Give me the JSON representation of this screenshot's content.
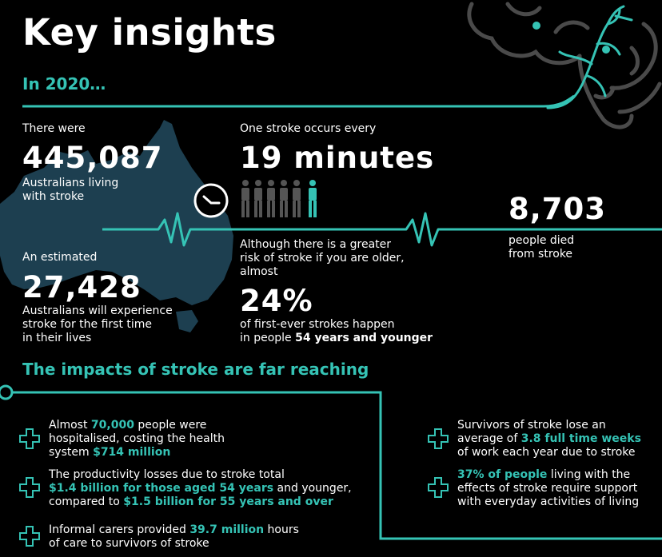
{
  "title": "Key insights",
  "subtitle": "In 2020…",
  "colors": {
    "accent": "#35c3b5",
    "background": "#000000",
    "map": "#1d3f50"
  },
  "stats": {
    "living": {
      "pre": "There were",
      "value": "445,087",
      "line1": "Australians living",
      "line2": "with stroke"
    },
    "frequency": {
      "pre": "One stroke occurs every",
      "value": "19 minutes"
    },
    "deaths": {
      "value": "8,703",
      "line1": "people died",
      "line2": "from stroke"
    },
    "first_time": {
      "pre": "An estimated",
      "value": "27,428",
      "line1": "Australians will experience",
      "line2": "stroke for the first time",
      "line3": "in their lives"
    },
    "young": {
      "line1": "Although there is a greater",
      "line2": "risk of stroke if you are older,",
      "line3": "almost",
      "value": "24%",
      "line4": "of first-ever strokes happen",
      "line5_pre": "in people ",
      "line5_bold": "54 years and younger"
    }
  },
  "impacts_title": "The impacts of stroke are far reaching",
  "impacts": {
    "hospital": {
      "t1": "Almost ",
      "h1": "70,000",
      "t2": " people were",
      "t3": "hospitalised, costing the health",
      "t4": "system ",
      "h2": "$714 million"
    },
    "productivity": {
      "t1": "The productivity losses due to stroke total",
      "h1": "$1.4 billion for those aged 54 years",
      "t2": " and younger,",
      "t3": "compared to ",
      "h2": "$1.5 billion for 55 years and over"
    },
    "carers": {
      "t1": "Informal carers provided ",
      "h1": "39.7 million",
      "t2": " hours",
      "t3": "of care to survivors of stroke"
    },
    "work": {
      "t1": "Survivors of stroke lose an",
      "t2": "average of ",
      "h1": "3.8 full time weeks",
      "t3": "of work each year due to stroke"
    },
    "support": {
      "h1": "37% of people",
      "t1": " living with the",
      "t2": "effects of stroke require support",
      "t3": "with everyday activities of living"
    }
  },
  "icons": [
    "brain-icon",
    "australia-map",
    "clock-icon",
    "people-icon",
    "heartbeat-line",
    "plus-icon"
  ]
}
